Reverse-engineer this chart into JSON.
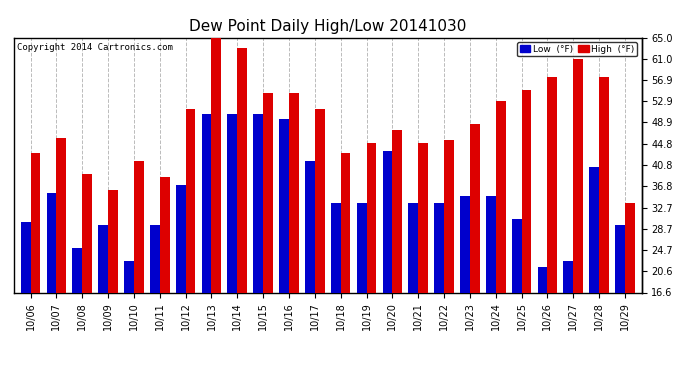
{
  "title": "Dew Point Daily High/Low 20141030",
  "copyright": "Copyright 2014 Cartronics.com",
  "dates": [
    "10/06",
    "10/07",
    "10/08",
    "10/09",
    "10/10",
    "10/11",
    "10/12",
    "10/13",
    "10/14",
    "10/15",
    "10/16",
    "10/17",
    "10/18",
    "10/19",
    "10/20",
    "10/21",
    "10/22",
    "10/23",
    "10/24",
    "10/25",
    "10/26",
    "10/27",
    "10/28",
    "10/29"
  ],
  "low_values": [
    30.0,
    35.5,
    25.0,
    29.5,
    22.5,
    29.5,
    37.0,
    50.5,
    50.5,
    50.5,
    49.5,
    41.5,
    33.5,
    33.5,
    43.5,
    33.5,
    33.5,
    35.0,
    35.0,
    30.5,
    21.5,
    22.5,
    40.5,
    29.5
  ],
  "high_values": [
    43.0,
    46.0,
    39.0,
    36.0,
    41.5,
    38.5,
    51.5,
    65.0,
    63.0,
    54.5,
    54.5,
    51.5,
    43.0,
    45.0,
    47.5,
    45.0,
    45.5,
    48.5,
    53.0,
    55.0,
    57.5,
    61.0,
    57.5,
    33.5
  ],
  "ylim": [
    16.6,
    65.0
  ],
  "yticks": [
    16.6,
    20.6,
    24.7,
    28.7,
    32.7,
    36.8,
    40.8,
    44.8,
    48.9,
    52.9,
    56.9,
    61.0,
    65.0
  ],
  "low_color": "#0000cc",
  "high_color": "#dd0000",
  "bg_color": "#ffffff",
  "grid_color": "#bbbbbb",
  "bar_width": 0.38,
  "title_fontsize": 11,
  "tick_fontsize": 7,
  "copyright_fontsize": 6.5
}
